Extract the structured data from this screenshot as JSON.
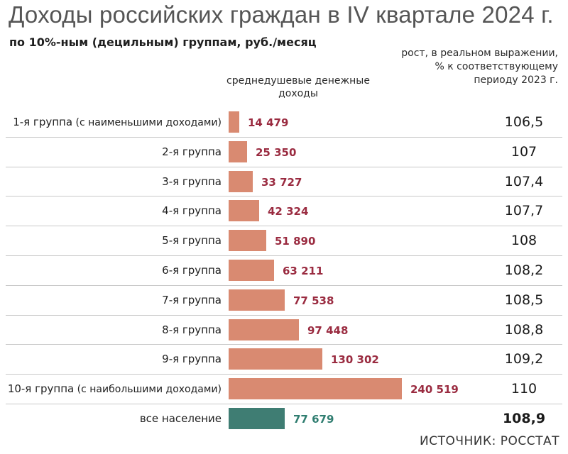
{
  "chart_data": {
    "type": "bar",
    "title": "Доходы российских граждан в IV квартале 2024 г.",
    "subtitle": "по 10%-ным (децильным) группам, руб./месяц",
    "income_header": "среднедушевые денежные доходы",
    "growth_header": "рост, в реальном выражении, % к соответствующему периоду 2023 г.",
    "source": "ИСТОЧНИК: РОССТАТ",
    "max_value": 240519,
    "colors": {
      "group_bar": "#d98a71",
      "total_bar": "#3f7d73",
      "value_text": "#9a2b40",
      "total_value_text": "#2f7d70"
    },
    "rows": [
      {
        "label": "1-я группа",
        "note": "(с наименьшими доходами)",
        "value": 14479,
        "value_text": "14 479",
        "growth": "106,5",
        "total": false
      },
      {
        "label": "2-я группа",
        "note": "",
        "value": 25350,
        "value_text": "25 350",
        "growth": "107",
        "total": false
      },
      {
        "label": "3-я группа",
        "note": "",
        "value": 33727,
        "value_text": "33 727",
        "growth": "107,4",
        "total": false
      },
      {
        "label": "4-я группа",
        "note": "",
        "value": 42324,
        "value_text": "42 324",
        "growth": "107,7",
        "total": false
      },
      {
        "label": "5-я группа",
        "note": "",
        "value": 51890,
        "value_text": "51 890",
        "growth": "108",
        "total": false
      },
      {
        "label": "6-я группа",
        "note": "",
        "value": 63211,
        "value_text": "63 211",
        "growth": "108,2",
        "total": false
      },
      {
        "label": "7-я группа",
        "note": "",
        "value": 77538,
        "value_text": "77 538",
        "growth": "108,5",
        "total": false
      },
      {
        "label": "8-я группа",
        "note": "",
        "value": 97448,
        "value_text": "97 448",
        "growth": "108,8",
        "total": false
      },
      {
        "label": "9-я группа",
        "note": "",
        "value": 130302,
        "value_text": "130 302",
        "growth": "109,2",
        "total": false
      },
      {
        "label": "10-я группа",
        "note": "(с наибольшими доходами)",
        "value": 240519,
        "value_text": "240 519",
        "growth": "110",
        "total": false
      },
      {
        "label": "все население",
        "note": "",
        "value": 77679,
        "value_text": "77 679",
        "growth": "108,9",
        "total": true
      }
    ]
  }
}
